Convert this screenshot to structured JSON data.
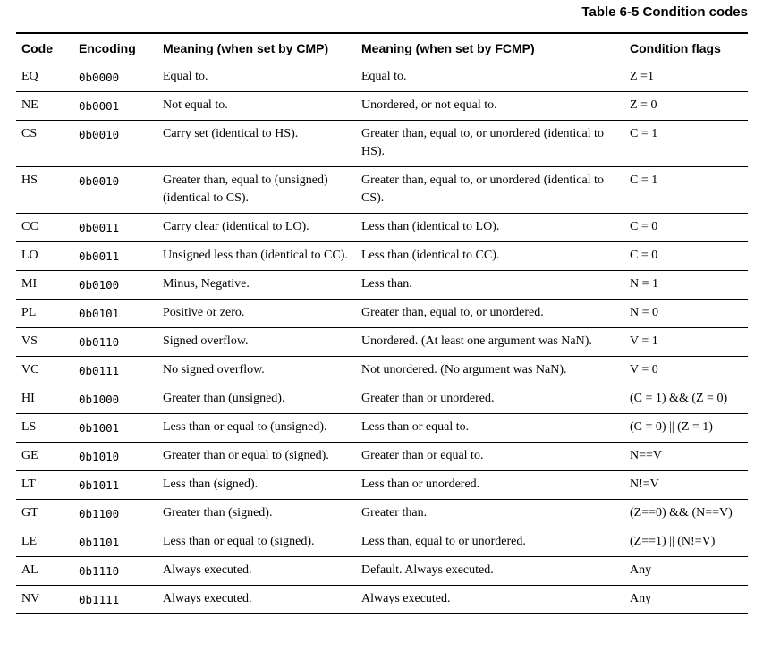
{
  "title": "Table 6-5 Condition codes",
  "table": {
    "columns": [
      "Code",
      "Encoding",
      "Meaning (when set by CMP)",
      "Meaning (when set by FCMP)",
      "Condition flags"
    ],
    "rows": [
      {
        "code": "EQ",
        "encoding": "0b0000",
        "cmp": "Equal to.",
        "fcmp": "Equal to.",
        "flags": "Z =1"
      },
      {
        "code": "NE",
        "encoding": "0b0001",
        "cmp": "Not equal to.",
        "fcmp": "Unordered, or not equal to.",
        "flags": "Z = 0"
      },
      {
        "code": "CS",
        "encoding": "0b0010",
        "cmp": "Carry set (identical to HS).",
        "fcmp": "Greater than, equal to, or unordered (identical to HS).",
        "flags": "C = 1"
      },
      {
        "code": "HS",
        "encoding": "0b0010",
        "cmp": "Greater than, equal to (unsigned) (identical to CS).",
        "fcmp": "Greater than, equal to, or unordered (identical to CS).",
        "flags": "C = 1"
      },
      {
        "code": "CC",
        "encoding": "0b0011",
        "cmp": "Carry clear (identical to LO).",
        "fcmp": "Less than (identical to LO).",
        "flags": "C = 0"
      },
      {
        "code": "LO",
        "encoding": "0b0011",
        "cmp": "Unsigned less than (identical to CC).",
        "fcmp": "Less than (identical to CC).",
        "flags": "C = 0"
      },
      {
        "code": "MI",
        "encoding": "0b0100",
        "cmp": "Minus, Negative.",
        "fcmp": "Less than.",
        "flags": "N = 1"
      },
      {
        "code": "PL",
        "encoding": "0b0101",
        "cmp": "Positive or zero.",
        "fcmp": "Greater than, equal to, or unordered.",
        "flags": "N = 0"
      },
      {
        "code": "VS",
        "encoding": "0b0110",
        "cmp": "Signed overflow.",
        "fcmp": "Unordered. (At least one argument was NaN).",
        "flags": "V = 1"
      },
      {
        "code": "VC",
        "encoding": "0b0111",
        "cmp": "No signed overflow.",
        "fcmp": "Not unordered. (No argument was NaN).",
        "flags": "V = 0"
      },
      {
        "code": "HI",
        "encoding": "0b1000",
        "cmp": "Greater than (unsigned).",
        "fcmp": "Greater than or unordered.",
        "flags": "(C = 1) && (Z = 0)"
      },
      {
        "code": "LS",
        "encoding": "0b1001",
        "cmp": "Less than or equal to (unsigned).",
        "fcmp": "Less than or equal to.",
        "flags": "(C = 0) || (Z = 1)"
      },
      {
        "code": "GE",
        "encoding": "0b1010",
        "cmp": "Greater than or equal to (signed).",
        "fcmp": "Greater than or equal to.",
        "flags": "N==V"
      },
      {
        "code": "LT",
        "encoding": "0b1011",
        "cmp": "Less than (signed).",
        "fcmp": "Less than or unordered.",
        "flags": "N!=V"
      },
      {
        "code": "GT",
        "encoding": "0b1100",
        "cmp": "Greater than (signed).",
        "fcmp": "Greater than.",
        "flags": "(Z==0) && (N==V)"
      },
      {
        "code": "LE",
        "encoding": "0b1101",
        "cmp": "Less than or equal to (signed).",
        "fcmp": "Less than, equal to or unordered.",
        "flags": "(Z==1) || (N!=V)"
      },
      {
        "code": "AL",
        "encoding": "0b1110",
        "cmp": "Always executed.",
        "fcmp": "Default. Always executed.",
        "flags": "Any"
      },
      {
        "code": "NV",
        "encoding": "0b1111",
        "cmp": "Always executed.",
        "fcmp": "Always executed.",
        "flags": "Any"
      }
    ]
  }
}
